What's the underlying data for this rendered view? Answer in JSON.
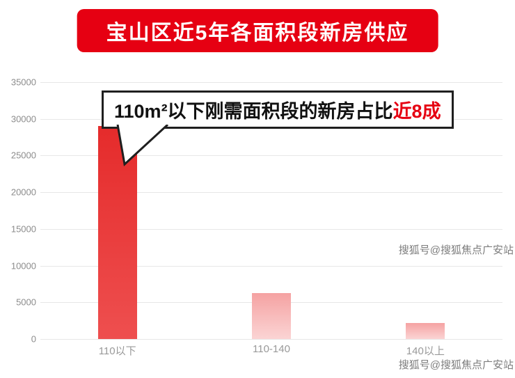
{
  "title": "宝山区近5年各面积段新房供应",
  "callout": {
    "text_main": "110m²以下刚需面积段的新房占比",
    "text_highlight": "近8成"
  },
  "watermark": "搜狐号@搜狐焦点广安站",
  "colors": {
    "banner": "#e60012",
    "highlight": "#e60012",
    "watermark": "#7d7d7d",
    "gridline": "#e7e7e7"
  },
  "chart_data": {
    "type": "bar",
    "title": "宝山区近5年各面积段新房供应",
    "categories": [
      "110以下",
      "110-140",
      "140以上"
    ],
    "values": [
      29000,
      6300,
      2200
    ],
    "xlabel": "",
    "ylabel": "",
    "ylim": [
      0,
      35000
    ],
    "yticks": [
      35000,
      30000,
      25000,
      20000,
      15000,
      10000,
      5000,
      0
    ],
    "grid": true,
    "legend": false,
    "annotation": "110m²以下刚需面积段的新房占比近8成",
    "bar_styles": [
      {
        "top": "#e52b2b",
        "bottom": "#ee4f4f"
      },
      {
        "top": "#f5a2a2",
        "bottom": "#fbd4d4"
      },
      {
        "top": "#f5a2a2",
        "bottom": "#fbd4d4"
      }
    ]
  }
}
